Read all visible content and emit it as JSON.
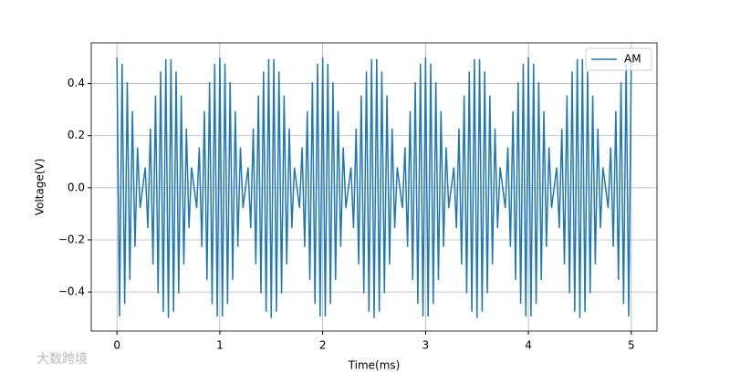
{
  "chart_data": {
    "type": "line",
    "xlabel": "Time(ms)",
    "ylabel": "Voltage(V)",
    "watermark": "大数跨境",
    "legend": "upper right",
    "grid": true,
    "xlim": [
      -0.25,
      5.25
    ],
    "ylim": [
      -0.55,
      0.556
    ],
    "xticks": [
      0,
      1,
      2,
      3,
      4,
      5
    ],
    "yticks": [
      {
        "value": -0.4,
        "label": "−0.4"
      },
      {
        "value": -0.2,
        "label": "−0.2"
      },
      {
        "value": 0,
        "label": "0.0"
      },
      0.2,
      0.4
    ],
    "x": [
      0,
      0.025,
      0.05,
      0.075,
      0.1,
      0.125,
      0.15,
      0.175,
      0.2,
      0.225,
      0.25,
      0.275,
      0.3,
      0.325,
      0.35,
      0.375,
      0.4,
      0.425,
      0.45,
      0.475,
      0.5,
      0.525,
      0.55,
      0.575,
      0.6,
      0.625,
      0.65,
      0.675,
      0.7,
      0.725,
      0.75,
      0.775,
      0.8,
      0.825,
      0.85,
      0.875,
      0.9,
      0.925,
      0.95,
      0.975,
      1,
      1.025,
      1.05,
      1.075,
      1.1,
      1.125,
      1.15,
      1.175,
      1.2,
      1.225,
      1.25,
      1.275,
      1.3,
      1.325,
      1.35,
      1.375,
      1.4,
      1.425,
      1.45,
      1.475,
      1.5,
      1.525,
      1.55,
      1.575,
      1.6,
      1.625,
      1.65,
      1.675,
      1.7,
      1.725,
      1.75,
      1.775,
      1.8,
      1.825,
      1.85,
      1.875,
      1.9,
      1.925,
      1.95,
      1.975,
      2,
      2.025,
      2.05,
      2.075,
      2.1,
      2.125,
      2.15,
      2.175,
      2.2,
      2.225,
      2.25,
      2.275,
      2.3,
      2.325,
      2.35,
      2.375,
      2.4,
      2.425,
      2.45,
      2.475,
      2.5,
      2.525,
      2.55,
      2.575,
      2.6,
      2.625,
      2.65,
      2.675,
      2.7,
      2.725,
      2.75,
      2.775,
      2.8,
      2.825,
      2.85,
      2.875,
      2.9,
      2.925,
      2.95,
      2.975,
      3,
      3.025,
      3.05,
      3.075,
      3.1,
      3.125,
      3.15,
      3.175,
      3.2,
      3.225,
      3.25,
      3.275,
      3.3,
      3.325,
      3.35,
      3.375,
      3.4,
      3.425,
      3.45,
      3.475,
      3.5,
      3.525,
      3.55,
      3.575,
      3.6,
      3.625,
      3.65,
      3.675,
      3.7,
      3.725,
      3.75,
      3.775,
      3.8,
      3.825,
      3.85,
      3.875,
      3.9,
      3.925,
      3.95,
      3.975,
      4,
      4.025,
      4.05,
      4.075,
      4.1,
      4.125,
      4.15,
      4.175,
      4.2,
      4.225,
      4.25,
      4.275,
      4.3,
      4.325,
      4.35,
      4.375,
      4.4,
      4.425,
      4.45,
      4.475,
      4.5,
      4.525,
      4.55,
      4.575,
      4.6,
      4.625,
      4.65,
      4.675,
      4.7,
      4.725,
      4.75,
      4.775,
      4.8,
      4.825,
      4.85,
      4.875,
      4.9,
      4.925,
      4.95,
      4.975,
      5
    ],
    "series": [
      {
        "name": "AM",
        "color": "#1f77b4",
        "values": [
          0.5,
          -0.494,
          0.476,
          -0.446,
          0.405,
          -0.354,
          0.294,
          -0.227,
          0.155,
          -0.078,
          0,
          0.078,
          -0.155,
          0.227,
          -0.294,
          0.354,
          -0.405,
          0.446,
          -0.476,
          0.494,
          -0.5,
          0.494,
          -0.476,
          0.446,
          -0.405,
          0.354,
          -0.294,
          0.227,
          -0.155,
          0.078,
          0,
          -0.078,
          0.155,
          -0.227,
          0.294,
          -0.354,
          0.405,
          -0.446,
          0.476,
          -0.494,
          0.5,
          -0.494,
          0.476,
          -0.446,
          0.405,
          -0.354,
          0.294,
          -0.227,
          0.155,
          -0.078,
          0,
          0.078,
          -0.155,
          0.227,
          -0.294,
          0.354,
          -0.405,
          0.446,
          -0.476,
          0.494,
          -0.5,
          0.494,
          -0.476,
          0.446,
          -0.405,
          0.354,
          -0.294,
          0.227,
          -0.155,
          0.078,
          0,
          -0.078,
          0.155,
          -0.227,
          0.294,
          -0.354,
          0.405,
          -0.446,
          0.476,
          -0.494,
          0.5,
          -0.494,
          0.476,
          -0.446,
          0.405,
          -0.354,
          0.294,
          -0.227,
          0.155,
          -0.078,
          0,
          0.078,
          -0.155,
          0.227,
          -0.294,
          0.354,
          -0.405,
          0.446,
          -0.476,
          0.494,
          -0.5,
          0.494,
          -0.476,
          0.446,
          -0.405,
          0.354,
          -0.294,
          0.227,
          -0.155,
          0.078,
          0,
          -0.078,
          0.155,
          -0.227,
          0.294,
          -0.354,
          0.405,
          -0.446,
          0.476,
          -0.494,
          0.5,
          -0.494,
          0.476,
          -0.446,
          0.405,
          -0.354,
          0.294,
          -0.227,
          0.155,
          -0.078,
          0,
          0.078,
          -0.155,
          0.227,
          -0.294,
          0.354,
          -0.405,
          0.446,
          -0.476,
          0.494,
          -0.5,
          0.494,
          -0.476,
          0.446,
          -0.405,
          0.354,
          -0.294,
          0.227,
          -0.155,
          0.078,
          0,
          -0.078,
          0.155,
          -0.227,
          0.294,
          -0.354,
          0.405,
          -0.446,
          0.476,
          -0.494,
          0.5,
          -0.494,
          0.476,
          -0.446,
          0.405,
          -0.354,
          0.294,
          -0.227,
          0.155,
          -0.078,
          0,
          0.078,
          -0.155,
          0.227,
          -0.294,
          0.354,
          -0.405,
          0.446,
          -0.476,
          0.494,
          -0.5,
          0.494,
          -0.476,
          0.446,
          -0.405,
          0.354,
          -0.294,
          0.227,
          -0.155,
          0.078,
          0,
          -0.078,
          0.155,
          -0.227,
          0.294,
          -0.354,
          0.405,
          -0.446,
          0.476,
          -0.494,
          0.5
        ]
      }
    ]
  }
}
